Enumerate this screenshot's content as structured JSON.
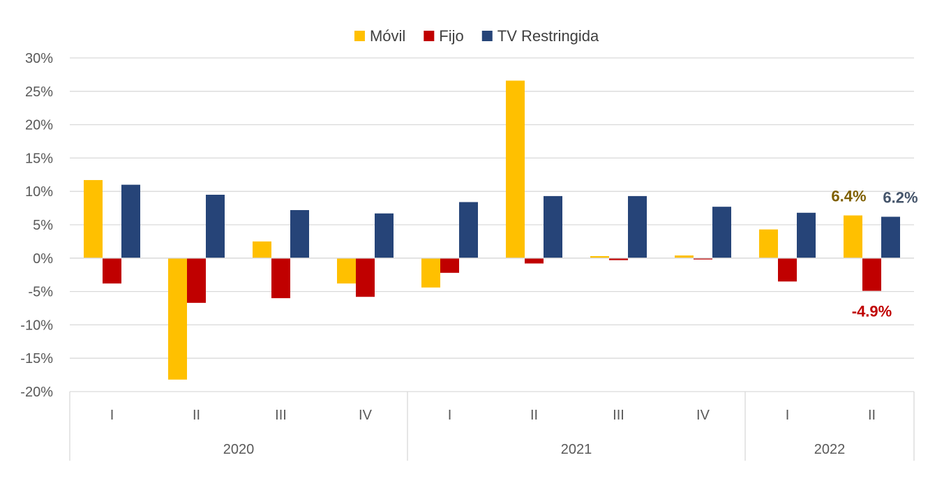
{
  "chart_data": {
    "type": "bar",
    "categories": [
      "I",
      "II",
      "III",
      "IV",
      "I",
      "II",
      "III",
      "IV",
      "I",
      "II"
    ],
    "groups": [
      {
        "label": "2020",
        "count": 4
      },
      {
        "label": "2021",
        "count": 4
      },
      {
        "label": "2022",
        "count": 2
      }
    ],
    "series": [
      {
        "name": "Móvil",
        "color": "#FFC000",
        "values": [
          11.7,
          -18.2,
          2.5,
          -3.8,
          -4.4,
          26.6,
          0.3,
          0.4,
          4.3,
          6.4
        ]
      },
      {
        "name": "Fijo",
        "color": "#C00000",
        "values": [
          -3.8,
          -6.7,
          -6.0,
          -5.8,
          -2.2,
          -0.8,
          -0.3,
          -0.2,
          -3.5,
          -4.9
        ]
      },
      {
        "name": "TV Restringida",
        "color": "#264478",
        "values": [
          11.0,
          9.5,
          7.2,
          6.7,
          8.4,
          9.3,
          9.3,
          7.7,
          6.8,
          6.2
        ]
      }
    ],
    "data_labels": [
      {
        "series": 0,
        "index": 9,
        "text": "6.4%",
        "color": "#7F6000"
      },
      {
        "series": 2,
        "index": 9,
        "text": "6.2%",
        "color": "#44546A"
      },
      {
        "series": 1,
        "index": 9,
        "text": "-4.9%",
        "color": "#C00000"
      }
    ],
    "ylim": [
      -20,
      30
    ],
    "yticks": [
      -20,
      -15,
      -10,
      -5,
      0,
      5,
      10,
      15,
      20,
      25,
      30
    ],
    "ytick_labels": [
      "-20%",
      "-15%",
      "-10%",
      "-5%",
      "0%",
      "5%",
      "10%",
      "15%",
      "20%",
      "25%",
      "30%"
    ],
    "grid": true,
    "legend_position": "top-center"
  }
}
